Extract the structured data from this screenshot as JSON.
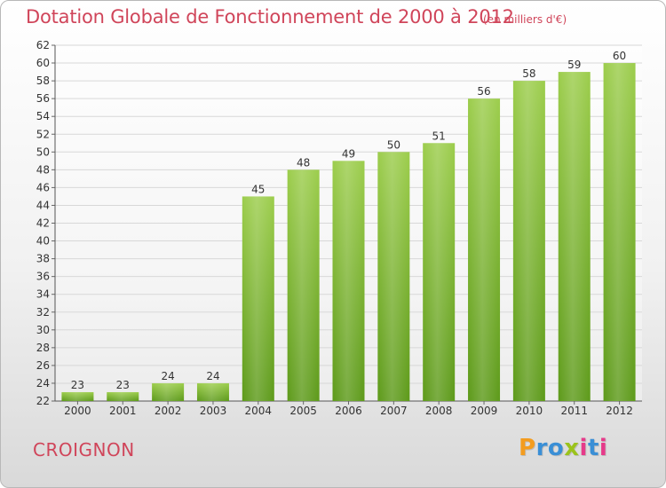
{
  "header": {
    "title": "Dotation Globale de Fonctionnement de 2000 à 2012",
    "subtitle": "(en milliers d'€)"
  },
  "footer": {
    "commune": "CROIGNON",
    "logo_text": "Proxiti"
  },
  "colors": {
    "title": "#d0455a",
    "bar_top": "#9ccd4c",
    "bar_bottom": "#5d9a1a",
    "grid": "#d8d8d8"
  },
  "chart_data": {
    "type": "bar",
    "title": "Dotation Globale de Fonctionnement de 2000 à 2012",
    "subtitle": "(en milliers d'€)",
    "categories": [
      "2000",
      "2001",
      "2002",
      "2003",
      "2004",
      "2005",
      "2006",
      "2007",
      "2008",
      "2009",
      "2010",
      "2011",
      "2012"
    ],
    "values": [
      23,
      23,
      24,
      24,
      45,
      48,
      49,
      50,
      51,
      56,
      58,
      59,
      60
    ],
    "ylim": [
      22,
      62
    ],
    "yticks": [
      22,
      24,
      26,
      28,
      30,
      32,
      34,
      36,
      38,
      40,
      42,
      44,
      46,
      48,
      50,
      52,
      54,
      56,
      58,
      60,
      62
    ],
    "grid": true,
    "data_labels": true
  }
}
